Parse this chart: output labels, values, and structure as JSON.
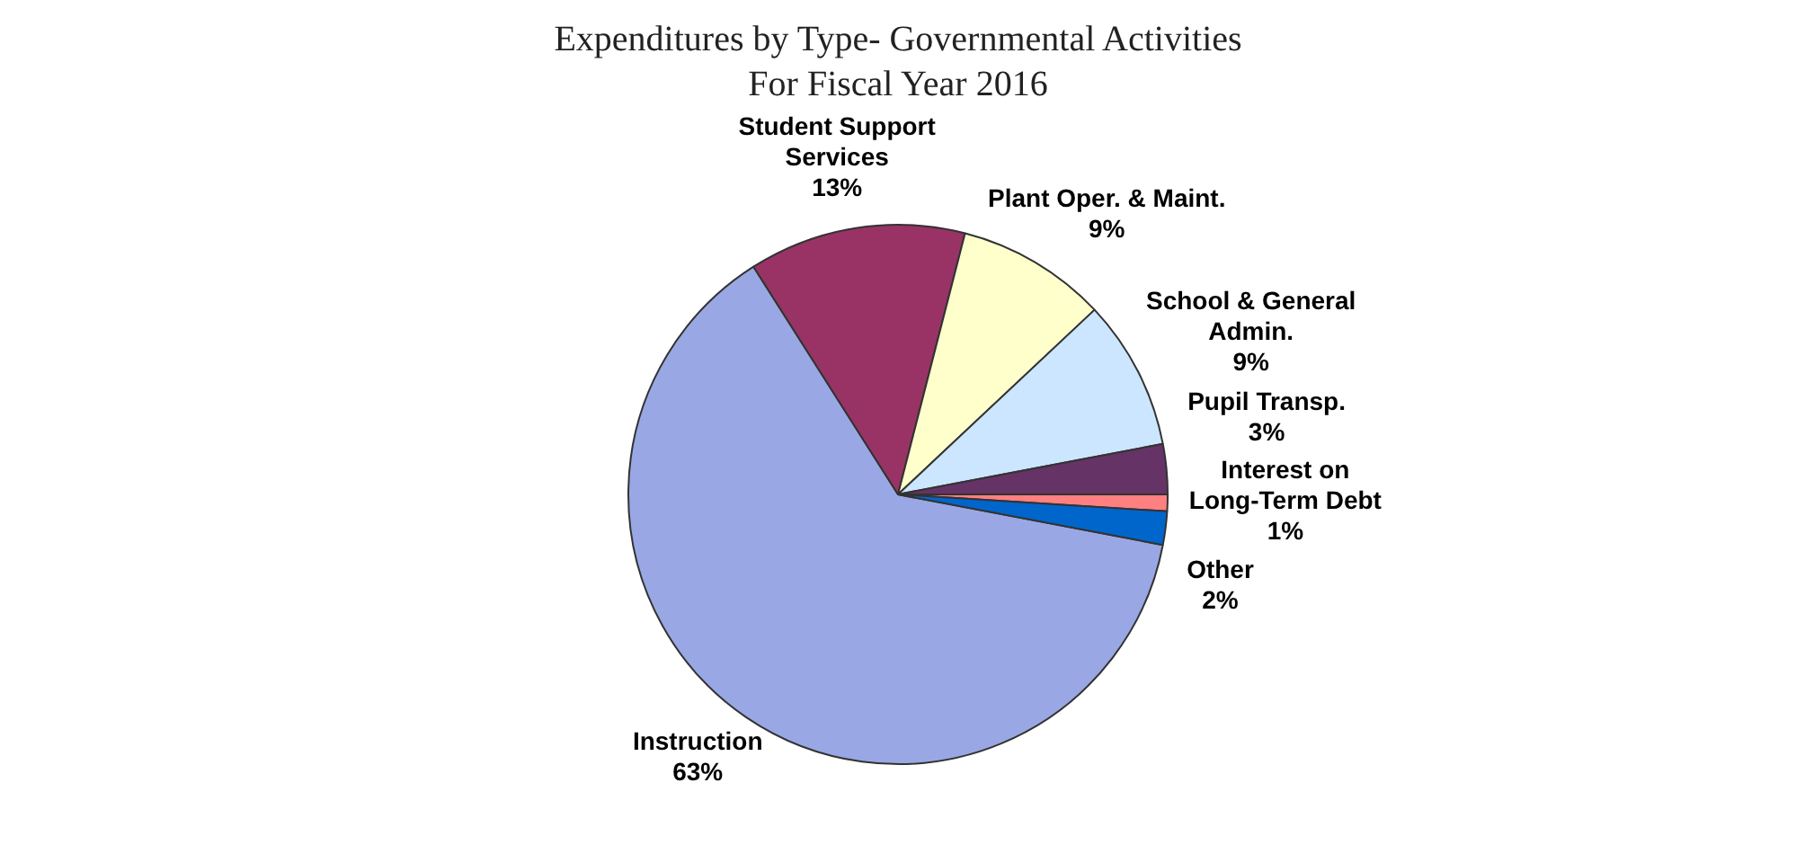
{
  "chart_data": {
    "type": "pie",
    "title": "Expenditures by Type- Governmental Activities\nFor Fiscal Year 2016",
    "categories": [
      "Instruction",
      "Student Support Services",
      "Plant Oper. & Maint.",
      "School & General Admin.",
      "Pupil Transp.",
      "Interest on Long-Term Debt",
      "Other"
    ],
    "values": [
      63,
      13,
      9,
      9,
      3,
      1,
      2
    ],
    "value_labels": [
      "63%",
      "13%",
      "9%",
      "9%",
      "3%",
      "1%",
      "2%"
    ],
    "colors": [
      "#99a8e4",
      "#993366",
      "#ffffcc",
      "#cce6ff",
      "#663366",
      "#ff8080",
      "#0066cc"
    ],
    "legend": false
  }
}
